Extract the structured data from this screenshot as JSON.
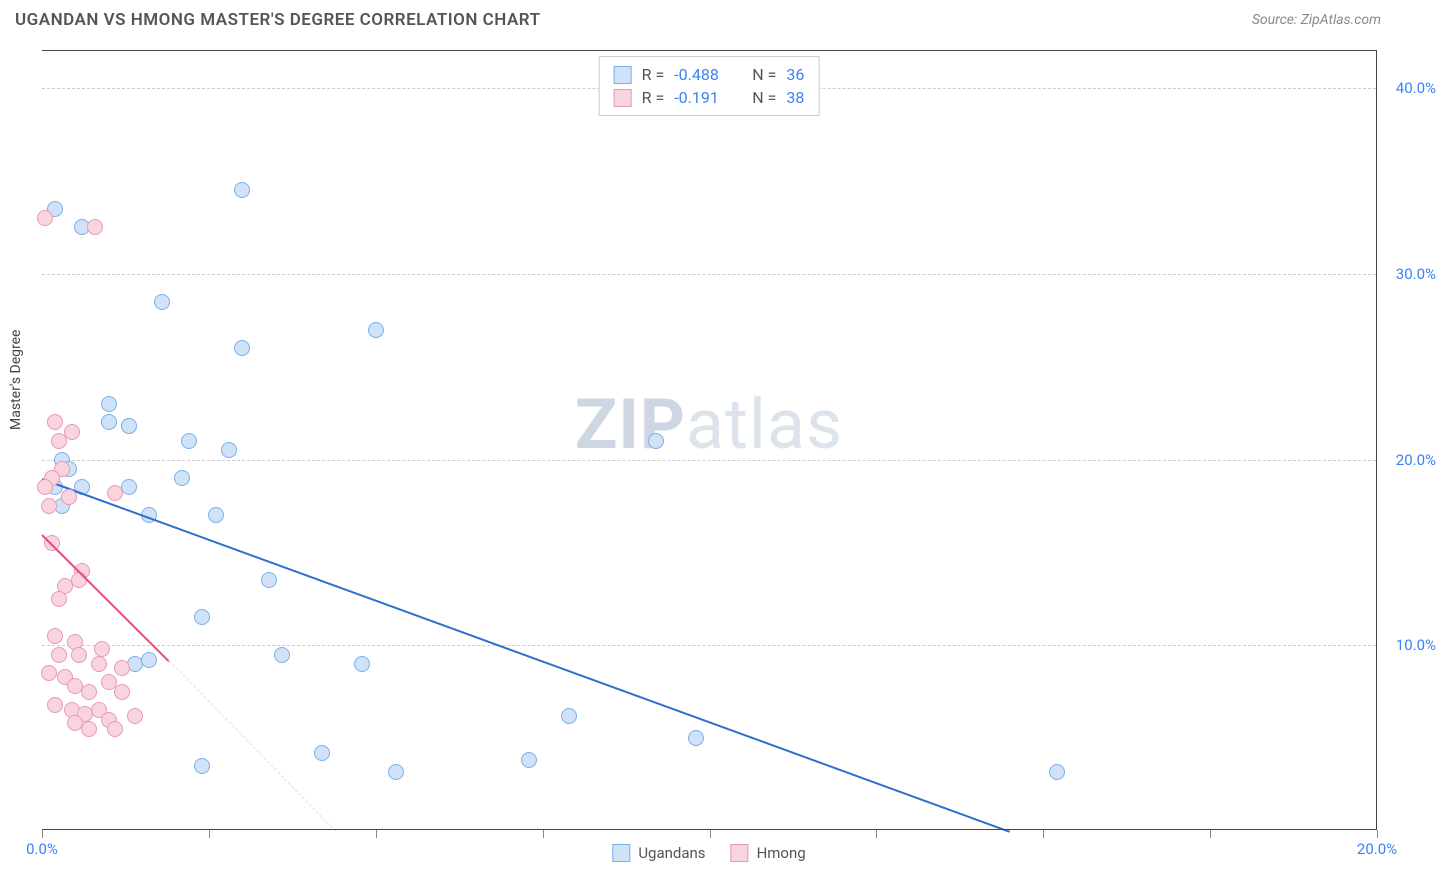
{
  "title": "UGANDAN VS HMONG MASTER'S DEGREE CORRELATION CHART",
  "source": "Source: ZipAtlas.com",
  "y_axis_label": "Master's Degree",
  "watermark": {
    "bold": "ZIP",
    "light": "atlas"
  },
  "chart": {
    "type": "scatter",
    "background_color": "#ffffff",
    "grid_color": "#cccccc",
    "axis_color": "#444444",
    "tick_label_color": "#3b82f6",
    "xlim": [
      0,
      20
    ],
    "ylim": [
      0,
      42
    ],
    "y_ticks": [
      10,
      20,
      30,
      40
    ],
    "y_tick_labels": [
      "10.0%",
      "20.0%",
      "30.0%",
      "40.0%"
    ],
    "x_ticks": [
      0,
      2.5,
      5,
      7.5,
      10,
      12.5,
      15,
      17.5,
      20
    ],
    "x_tick_labels": {
      "0": "0.0%",
      "20": "20.0%"
    },
    "point_radius": 8,
    "series": [
      {
        "name": "Ugandans",
        "fill": "#cfe2f8",
        "stroke": "#7bb0e8",
        "trend_color": "#2f6fd0",
        "trend": {
          "x1": 0,
          "y1": 19.0,
          "x2": 14.5,
          "y2": 0
        },
        "R": "-0.488",
        "N": "36",
        "points": [
          [
            0.2,
            33.5
          ],
          [
            0.6,
            32.5
          ],
          [
            3.0,
            34.5
          ],
          [
            1.8,
            28.5
          ],
          [
            3.0,
            26.0
          ],
          [
            5.0,
            27.0
          ],
          [
            1.3,
            21.8
          ],
          [
            1.0,
            23.0
          ],
          [
            2.2,
            21.0
          ],
          [
            1.0,
            22.0
          ],
          [
            1.3,
            21.8
          ],
          [
            2.8,
            20.5
          ],
          [
            1.6,
            17.0
          ],
          [
            0.3,
            20.0
          ],
          [
            0.4,
            19.5
          ],
          [
            0.6,
            18.5
          ],
          [
            0.2,
            18.5
          ],
          [
            2.1,
            19.0
          ],
          [
            0.3,
            17.5
          ],
          [
            0.4,
            18.0
          ],
          [
            1.3,
            18.5
          ],
          [
            2.6,
            17.0
          ],
          [
            3.4,
            13.5
          ],
          [
            2.4,
            11.5
          ],
          [
            1.4,
            9.0
          ],
          [
            3.6,
            9.5
          ],
          [
            4.8,
            9.0
          ],
          [
            2.4,
            3.5
          ],
          [
            4.2,
            4.2
          ],
          [
            5.3,
            3.2
          ],
          [
            7.3,
            3.8
          ],
          [
            7.9,
            6.2
          ],
          [
            9.8,
            5.0
          ],
          [
            9.2,
            21.0
          ],
          [
            15.2,
            3.2
          ],
          [
            1.6,
            9.2
          ]
        ]
      },
      {
        "name": "Hmong",
        "fill": "#f8d5de",
        "stroke": "#e89ab0",
        "trend_color": "#e44d7a",
        "trend": {
          "x1": 0,
          "y1": 16.0,
          "x2": 1.9,
          "y2": 9.2
        },
        "trend_dash": {
          "x1": 1.9,
          "y1": 9.2,
          "x2": 4.4,
          "y2": 0
        },
        "R": "-0.191",
        "N": "38",
        "points": [
          [
            0.05,
            33.0
          ],
          [
            0.8,
            32.5
          ],
          [
            0.2,
            22.0
          ],
          [
            0.25,
            21.0
          ],
          [
            0.45,
            21.5
          ],
          [
            0.3,
            19.5
          ],
          [
            0.15,
            19.0
          ],
          [
            0.05,
            18.5
          ],
          [
            0.1,
            17.5
          ],
          [
            0.4,
            18.0
          ],
          [
            1.1,
            18.2
          ],
          [
            0.15,
            15.5
          ],
          [
            0.6,
            14.0
          ],
          [
            0.35,
            13.2
          ],
          [
            0.55,
            13.5
          ],
          [
            0.25,
            12.5
          ],
          [
            0.2,
            10.5
          ],
          [
            0.5,
            10.2
          ],
          [
            0.25,
            9.5
          ],
          [
            0.55,
            9.5
          ],
          [
            0.9,
            9.8
          ],
          [
            0.85,
            9.0
          ],
          [
            1.2,
            8.8
          ],
          [
            0.1,
            8.5
          ],
          [
            0.35,
            8.3
          ],
          [
            0.5,
            7.8
          ],
          [
            0.7,
            7.5
          ],
          [
            1.0,
            8.0
          ],
          [
            1.2,
            7.5
          ],
          [
            0.2,
            6.8
          ],
          [
            0.45,
            6.5
          ],
          [
            0.65,
            6.3
          ],
          [
            0.85,
            6.5
          ],
          [
            1.0,
            6.0
          ],
          [
            1.4,
            6.2
          ],
          [
            1.1,
            5.5
          ],
          [
            0.5,
            5.8
          ],
          [
            0.7,
            5.5
          ]
        ]
      }
    ],
    "bottom_legend": [
      {
        "label": "Ugandans",
        "fill": "#cfe2f8",
        "stroke": "#7bb0e8"
      },
      {
        "label": "Hmong",
        "fill": "#f8d5de",
        "stroke": "#e89ab0"
      }
    ]
  }
}
